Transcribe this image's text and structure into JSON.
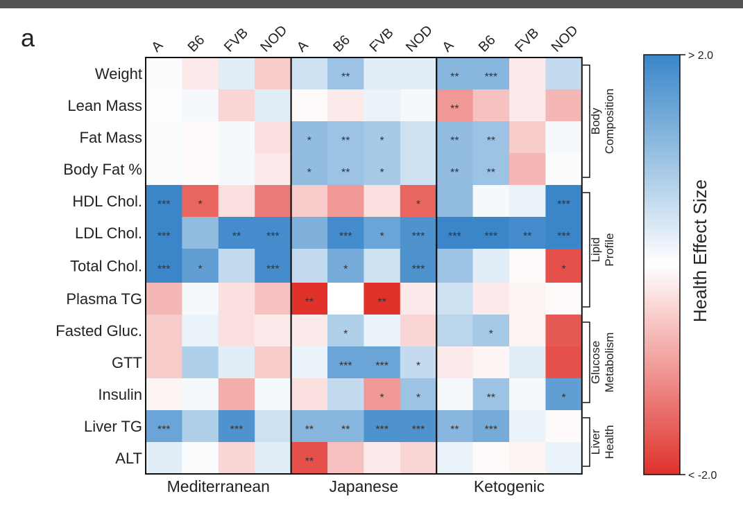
{
  "panel_label": "a",
  "chart_data": {
    "type": "heatmap",
    "title": "",
    "groups": [
      {
        "name": "Mediterranean",
        "columns": [
          "A",
          "B6",
          "FVB",
          "NOD"
        ]
      },
      {
        "name": "Japanese",
        "columns": [
          "A",
          "B6",
          "FVB",
          "NOD"
        ]
      },
      {
        "name": "Ketogenic",
        "columns": [
          "A",
          "B6",
          "FVB",
          "NOD"
        ]
      }
    ],
    "rows": [
      "Weight",
      "Lean Mass",
      "Fat Mass",
      "Body Fat %",
      "HDL Chol.",
      "LDL Chol.",
      "Total Chol.",
      "Plasma TG",
      "Fasted Gluc.",
      "GTT",
      "Insulin",
      "Liver TG",
      "ALT"
    ],
    "categories": [
      {
        "label": "Body Composition",
        "rows": [
          "Weight",
          "Lean Mass",
          "Fat Mass",
          "Body Fat %"
        ]
      },
      {
        "label": "Lipid Profile",
        "rows": [
          "HDL Chol.",
          "LDL Chol.",
          "Total Chol.",
          "Plasma TG"
        ]
      },
      {
        "label": "Glucose Metabolism",
        "rows": [
          "Fasted Gluc.",
          "GTT",
          "Insulin"
        ]
      },
      {
        "label": "Liver Health",
        "rows": [
          "Liver TG",
          "ALT"
        ]
      }
    ],
    "values": [
      [
        0.05,
        -0.2,
        0.3,
        -0.5,
        0.5,
        1.0,
        0.3,
        0.3,
        1.2,
        1.2,
        -0.2,
        0.6
      ],
      [
        0.03,
        0.1,
        -0.4,
        0.3,
        -0.05,
        -0.2,
        0.2,
        0.1,
        -1.0,
        -0.6,
        -0.2,
        -0.7
      ],
      [
        0.05,
        -0.05,
        0.1,
        -0.3,
        1.1,
        1.0,
        0.9,
        0.5,
        1.1,
        1.0,
        -0.5,
        0.1
      ],
      [
        0.05,
        -0.05,
        0.1,
        -0.2,
        1.1,
        1.0,
        0.9,
        0.5,
        1.1,
        1.0,
        -0.7,
        0.05
      ],
      [
        2.0,
        -1.5,
        -0.3,
        -1.3,
        -0.5,
        -1.0,
        -0.3,
        -1.5,
        1.1,
        0.1,
        0.2,
        2.0
      ],
      [
        2.0,
        1.1,
        1.9,
        1.9,
        1.3,
        1.9,
        1.5,
        1.8,
        2.0,
        2.0,
        1.9,
        2.0
      ],
      [
        2.0,
        1.6,
        0.6,
        1.9,
        0.6,
        1.4,
        0.5,
        1.8,
        1.0,
        0.3,
        -0.05,
        -1.7
      ],
      [
        -0.7,
        0.1,
        -0.3,
        -0.6,
        -2.0,
        0.0,
        -2.0,
        -0.2,
        0.5,
        -0.2,
        -0.1,
        -0.05
      ],
      [
        -0.5,
        0.2,
        -0.3,
        -0.2,
        -0.2,
        0.8,
        0.2,
        -0.4,
        0.7,
        0.9,
        -0.1,
        -1.6
      ],
      [
        -0.5,
        0.8,
        0.3,
        -0.5,
        0.2,
        1.5,
        1.5,
        0.6,
        -0.2,
        -0.1,
        0.3,
        -1.7
      ],
      [
        -0.1,
        0.1,
        -0.8,
        0.1,
        -0.3,
        0.6,
        -1.0,
        1.0,
        0.1,
        1.0,
        0.1,
        1.6
      ],
      [
        1.5,
        0.8,
        1.8,
        0.5,
        1.2,
        1.2,
        1.8,
        1.8,
        1.2,
        1.4,
        0.2,
        -0.05
      ],
      [
        0.3,
        0.05,
        -0.4,
        0.3,
        -1.7,
        -0.6,
        -0.2,
        -0.4,
        0.2,
        -0.05,
        -0.1,
        0.2
      ]
    ],
    "significance": [
      [
        "",
        "",
        "",
        "",
        "",
        "**",
        "",
        "",
        "**",
        "***",
        "",
        ""
      ],
      [
        "",
        "",
        "",
        "",
        "",
        "",
        "",
        "",
        "**",
        "",
        "",
        ""
      ],
      [
        "",
        "",
        "",
        "",
        "*",
        "**",
        "*",
        "",
        "**",
        "**",
        "",
        ""
      ],
      [
        "",
        "",
        "",
        "",
        "*",
        "**",
        "*",
        "",
        "**",
        "**",
        "",
        ""
      ],
      [
        "***",
        "*",
        "",
        "",
        "",
        "",
        "",
        "*",
        "",
        "",
        "",
        "***"
      ],
      [
        "***",
        "",
        "**",
        "***",
        "",
        "***",
        "*",
        "***",
        "***",
        "***",
        "**",
        "***"
      ],
      [
        "***",
        "*",
        "",
        "***",
        "",
        "*",
        "",
        "***",
        "",
        "",
        "",
        "*"
      ],
      [
        "",
        "",
        "",
        "",
        "**",
        "",
        "**",
        "",
        "",
        "",
        "",
        ""
      ],
      [
        "",
        "",
        "",
        "",
        "",
        "*",
        "",
        "",
        "",
        "*",
        "",
        ""
      ],
      [
        "",
        "",
        "",
        "",
        "",
        "***",
        "***",
        "*",
        "",
        "",
        "",
        ""
      ],
      [
        "",
        "",
        "",
        "",
        "",
        "",
        "*",
        "*",
        "",
        "**",
        "",
        "*"
      ],
      [
        "***",
        "",
        "***",
        "",
        "**",
        "**",
        "***",
        "***",
        "**",
        "***",
        "",
        ""
      ],
      [
        "",
        "",
        "",
        "",
        "**",
        "",
        "",
        "",
        "",
        "",
        "",
        ""
      ]
    ],
    "colorbar": {
      "title": "Health Effect Size",
      "max_label": "> 2.0",
      "min_label": "< -2.0",
      "max_color": "#3a86c8",
      "mid_color": "#ffffff",
      "min_color": "#e0312b"
    }
  }
}
